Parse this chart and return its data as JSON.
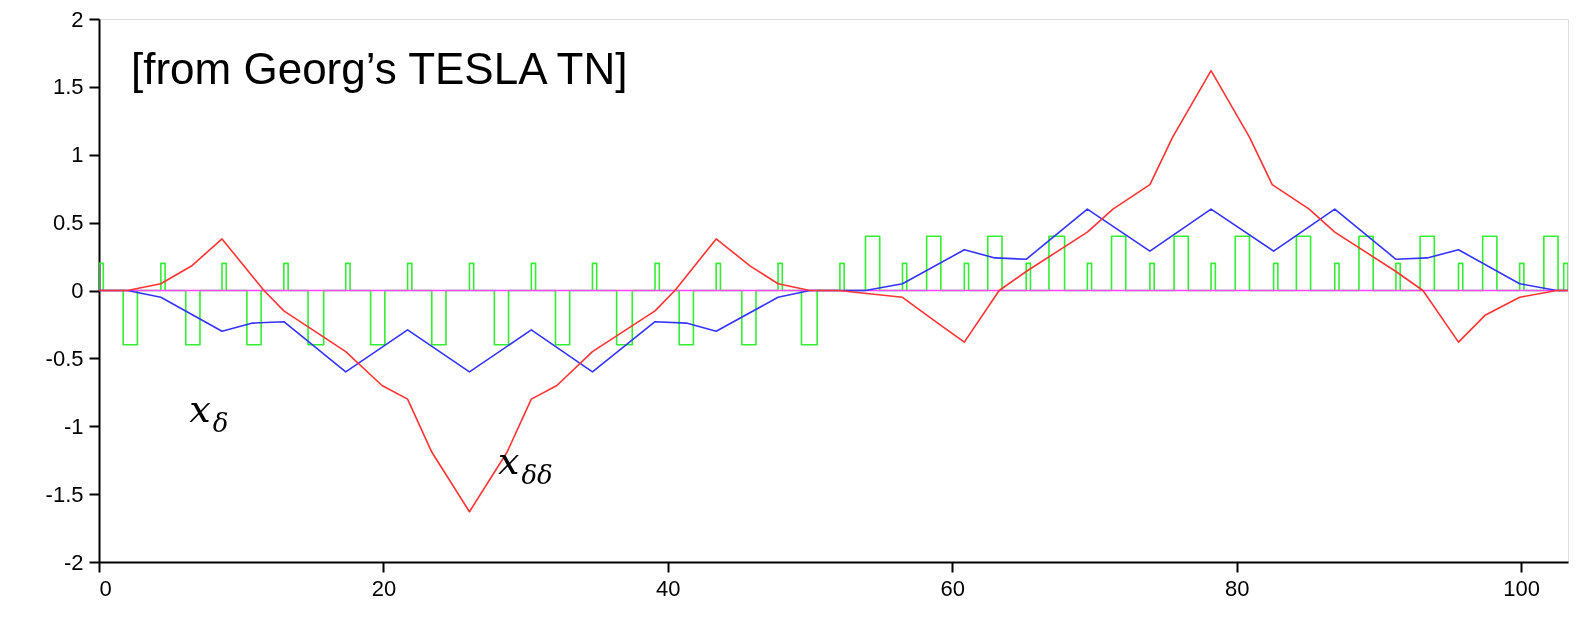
{
  "chart_data": {
    "type": "line",
    "annotations": [
      "[from Georg’s TESLA TN]"
    ],
    "xlim": [
      0,
      103.3
    ],
    "xticks": [
      0,
      20,
      40,
      60,
      80,
      100
    ],
    "ylim": [
      -2,
      2
    ],
    "yticks": [
      -2,
      -1.5,
      -1,
      -0.5,
      0,
      0.5,
      1,
      1.5,
      2
    ],
    "series": [
      {
        "color": "#33ee33",
        "x": [
          0,
          0,
          0.3,
          0.3,
          1.7,
          1.7,
          2.7,
          2.7,
          4.35,
          4.35,
          4.65,
          4.65,
          6.1,
          6.1,
          7.1,
          7.1,
          8.65,
          8.65,
          8.95,
          8.95,
          10.4,
          10.4,
          11.4,
          11.4,
          13,
          13,
          13.3,
          13.3,
          14.7,
          14.7,
          15.8,
          15.8,
          17.35,
          17.35,
          17.65,
          17.65,
          19.1,
          19.1,
          20.1,
          20.1,
          21.7,
          21.7,
          22,
          22,
          23.4,
          23.4,
          24.4,
          24.4,
          26.05,
          26.05,
          26.35,
          26.35,
          27.8,
          27.8,
          28.8,
          28.8,
          30.4,
          30.4,
          30.7,
          30.7,
          32.1,
          32.1,
          33.1,
          33.1,
          34.7,
          34.7,
          35,
          35,
          36.4,
          36.4,
          37.5,
          37.5,
          39.1,
          39.1,
          39.4,
          39.4,
          40.8,
          40.8,
          41.8,
          41.8,
          43.4,
          43.4,
          43.7,
          43.7,
          45.2,
          45.2,
          46.2,
          46.2,
          47.75,
          47.75,
          48.05,
          48.05,
          49.4,
          49.4,
          50.5,
          50.5,
          52.1,
          52.1,
          52.4,
          52.4,
          53.9,
          53.9,
          54.9,
          54.9,
          56.5,
          56.5,
          56.8,
          56.8,
          58.2,
          58.2,
          59.2,
          59.2,
          60.85,
          60.85,
          61.15,
          61.15,
          62.5,
          62.5,
          63.5,
          63.5,
          65.2,
          65.2,
          65.5,
          65.5,
          66.8,
          66.8,
          67.9,
          67.9,
          69.5,
          69.5,
          69.8,
          69.8,
          71.2,
          71.2,
          72.2,
          72.2,
          73.9,
          73.9,
          74.2,
          74.2,
          75.6,
          75.6,
          76.6,
          76.6,
          78.2,
          78.2,
          78.5,
          78.5,
          79.9,
          79.9,
          80.9,
          80.9,
          82.6,
          82.6,
          82.9,
          82.9,
          84.2,
          84.2,
          85.2,
          85.2,
          86.9,
          86.9,
          87.2,
          87.2,
          88.6,
          88.6,
          89.6,
          89.6,
          91.2,
          91.2,
          91.5,
          91.5,
          92.9,
          92.9,
          93.9,
          93.9,
          95.6,
          95.6,
          95.9,
          95.9,
          97.3,
          97.3,
          98.3,
          98.3,
          99.9,
          99.9,
          100.2,
          100.2,
          101.6,
          101.6,
          102.6,
          102.6,
          103,
          103,
          103.3,
          103.3
        ],
        "values": [
          0,
          0.2,
          0.2,
          0,
          0,
          -0.4,
          -0.4,
          0,
          0,
          0.2,
          0.2,
          0,
          0,
          -0.4,
          -0.4,
          0,
          0,
          0.2,
          0.2,
          0,
          0,
          -0.4,
          -0.4,
          0,
          0,
          0.2,
          0.2,
          0,
          0,
          -0.4,
          -0.4,
          0,
          0,
          0.2,
          0.2,
          0,
          0,
          -0.4,
          -0.4,
          0,
          0,
          0.2,
          0.2,
          0,
          0,
          -0.4,
          -0.4,
          0,
          0,
          0.2,
          0.2,
          0,
          0,
          -0.4,
          -0.4,
          0,
          0,
          0.2,
          0.2,
          0,
          0,
          -0.4,
          -0.4,
          0,
          0,
          0.2,
          0.2,
          0,
          0,
          -0.4,
          -0.4,
          0,
          0,
          0.2,
          0.2,
          0,
          0,
          -0.4,
          -0.4,
          0,
          0,
          0.2,
          0.2,
          0,
          0,
          -0.4,
          -0.4,
          0,
          0,
          0.2,
          0.2,
          0,
          0,
          -0.4,
          -0.4,
          0,
          0,
          0.2,
          0.2,
          0,
          0,
          0.4,
          0.4,
          0,
          0,
          0.2,
          0.2,
          0,
          0,
          0.4,
          0.4,
          0,
          0,
          0.2,
          0.2,
          0,
          0,
          0.4,
          0.4,
          0,
          0,
          0.2,
          0.2,
          0,
          0,
          0.4,
          0.4,
          0,
          0,
          0.2,
          0.2,
          0,
          0,
          0.4,
          0.4,
          0,
          0,
          0.2,
          0.2,
          0,
          0,
          0.4,
          0.4,
          0,
          0,
          0.2,
          0.2,
          0,
          0,
          0.4,
          0.4,
          0,
          0,
          0.2,
          0.2,
          0,
          0,
          0.4,
          0.4,
          0,
          0,
          0.2,
          0.2,
          0,
          0,
          0.4,
          0.4,
          0,
          0,
          0.2,
          0.2,
          0,
          0,
          0.4,
          0.4,
          0,
          0,
          0.2,
          0.2,
          0,
          0,
          0.4,
          0.4,
          0,
          0,
          0.2,
          0.2,
          0,
          0,
          0.4,
          0.4,
          0,
          0,
          0.2,
          0.2,
          0
        ]
      },
      {
        "color": "#ff44ff",
        "x": [
          0,
          103.3
        ],
        "values": [
          0,
          0
        ]
      },
      {
        "name": "x$_{δ}$",
        "color": "#3333ff",
        "x": [
          0,
          2,
          4.35,
          8.65,
          10.8,
          13,
          17.35,
          21.7,
          26.05,
          30.4,
          34.7,
          39.1,
          41.3,
          43.4,
          47.75,
          50,
          53.9,
          56.5,
          60.85,
          63,
          65.2,
          69.5,
          73.9,
          78.2,
          82.6,
          86.9,
          91.2,
          93.4,
          95.6,
          99.9,
          102.5,
          103.3
        ],
        "values": [
          0,
          0,
          -0.05,
          -0.3,
          -0.24,
          -0.23,
          -0.6,
          -0.29,
          -0.6,
          -0.29,
          -0.6,
          -0.23,
          -0.24,
          -0.3,
          -0.05,
          0,
          0,
          0.05,
          0.3,
          0.24,
          0.23,
          0.6,
          0.29,
          0.6,
          0.29,
          0.6,
          0.23,
          0.24,
          0.3,
          0.05,
          0,
          0
        ]
      },
      {
        "name": "x$_{δδ}$",
        "color": "#ff3333",
        "x": [
          0,
          2,
          4.35,
          6.5,
          8.65,
          11.6,
          13,
          17.35,
          19.9,
          21.7,
          23.4,
          26.05,
          28.7,
          30.4,
          32.2,
          34.7,
          39.1,
          40.5,
          43.4,
          45.8,
          47.75,
          50,
          52,
          56.5,
          59.1,
          60.85,
          63.3,
          65.2,
          69.5,
          71.3,
          73.9,
          75.5,
          78.2,
          80.9,
          82.5,
          85.1,
          86.9,
          91.2,
          93.1,
          95.6,
          97.5,
          99.9,
          102.5,
          103.3
        ],
        "values": [
          0,
          0,
          0.05,
          0.18,
          0.38,
          0,
          -0.15,
          -0.45,
          -0.7,
          -0.8,
          -1.19,
          -1.63,
          -1.19,
          -0.8,
          -0.7,
          -0.45,
          -0.15,
          0,
          0.38,
          0.18,
          0.05,
          0,
          0,
          -0.05,
          -0.25,
          -0.38,
          0,
          0.14,
          0.43,
          0.6,
          0.78,
          1.13,
          1.62,
          1.13,
          0.78,
          0.6,
          0.43,
          0.14,
          0,
          -0.38,
          -0.18,
          -0.05,
          0,
          0
        ]
      }
    ]
  }
}
